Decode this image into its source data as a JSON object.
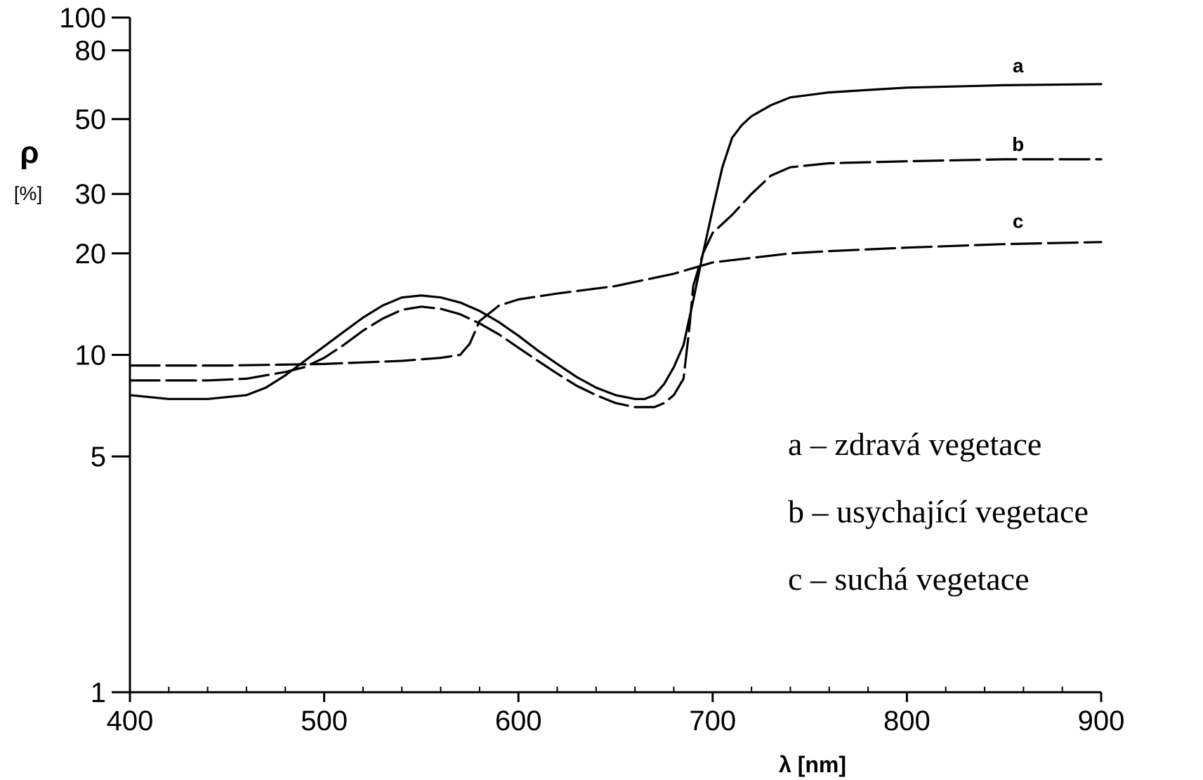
{
  "chart_data": {
    "type": "line",
    "title": "",
    "xlabel": "λ  [nm]",
    "ylabel_symbol": "ρ",
    "ylabel_unit": "[%]",
    "x_range": [
      400,
      900
    ],
    "y_range": [
      1,
      100
    ],
    "y_scale": "log",
    "grid": false,
    "x_ticks": [
      {
        "value": 400,
        "label": "400"
      },
      {
        "value": 500,
        "label": "500"
      },
      {
        "value": 600,
        "label": "600"
      },
      {
        "value": 700,
        "label": "700"
      },
      {
        "value": 800,
        "label": "800"
      },
      {
        "value": 900,
        "label": "900"
      }
    ],
    "y_ticks": [
      {
        "value": 1,
        "label": "1"
      },
      {
        "value": 5,
        "label": "5"
      },
      {
        "value": 10,
        "label": "10"
      },
      {
        "value": 20,
        "label": "20"
      },
      {
        "value": 30,
        "label": "30"
      },
      {
        "value": 50,
        "label": "50"
      },
      {
        "value": 80,
        "label": "80"
      },
      {
        "value": 100,
        "label": "100"
      }
    ],
    "series": [
      {
        "name": "a",
        "line_style": "solid",
        "label_at": [
          850,
          65
        ],
        "points": [
          [
            400,
            7.6
          ],
          [
            420,
            7.4
          ],
          [
            440,
            7.4
          ],
          [
            460,
            7.6
          ],
          [
            470,
            8.0
          ],
          [
            480,
            8.7
          ],
          [
            490,
            9.6
          ],
          [
            500,
            10.6
          ],
          [
            510,
            11.7
          ],
          [
            520,
            12.9
          ],
          [
            530,
            14.0
          ],
          [
            540,
            14.8
          ],
          [
            550,
            15.0
          ],
          [
            560,
            14.8
          ],
          [
            570,
            14.3
          ],
          [
            580,
            13.5
          ],
          [
            590,
            12.5
          ],
          [
            600,
            11.4
          ],
          [
            610,
            10.3
          ],
          [
            620,
            9.4
          ],
          [
            630,
            8.6
          ],
          [
            640,
            8.0
          ],
          [
            650,
            7.6
          ],
          [
            660,
            7.4
          ],
          [
            665,
            7.4
          ],
          [
            670,
            7.6
          ],
          [
            675,
            8.2
          ],
          [
            680,
            9.2
          ],
          [
            685,
            10.7
          ],
          [
            690,
            14.5
          ],
          [
            695,
            20
          ],
          [
            700,
            27
          ],
          [
            705,
            36
          ],
          [
            710,
            44
          ],
          [
            715,
            48
          ],
          [
            720,
            51
          ],
          [
            730,
            55
          ],
          [
            740,
            58
          ],
          [
            760,
            60
          ],
          [
            780,
            61
          ],
          [
            800,
            62
          ],
          [
            850,
            63
          ],
          [
            900,
            63.5
          ]
        ]
      },
      {
        "name": "b",
        "line_style": "dashed",
        "label_at": [
          850,
          38
        ],
        "points": [
          [
            400,
            8.4
          ],
          [
            420,
            8.4
          ],
          [
            440,
            8.4
          ],
          [
            460,
            8.5
          ],
          [
            480,
            8.9
          ],
          [
            490,
            9.2
          ],
          [
            500,
            9.8
          ],
          [
            510,
            10.7
          ],
          [
            520,
            11.8
          ],
          [
            530,
            12.8
          ],
          [
            540,
            13.6
          ],
          [
            550,
            13.9
          ],
          [
            560,
            13.7
          ],
          [
            570,
            13.2
          ],
          [
            580,
            12.4
          ],
          [
            590,
            11.5
          ],
          [
            600,
            10.5
          ],
          [
            610,
            9.6
          ],
          [
            620,
            8.8
          ],
          [
            630,
            8.1
          ],
          [
            640,
            7.6
          ],
          [
            650,
            7.2
          ],
          [
            660,
            7.0
          ],
          [
            670,
            7.0
          ],
          [
            675,
            7.2
          ],
          [
            680,
            7.6
          ],
          [
            685,
            8.5
          ],
          [
            688,
            12
          ],
          [
            690,
            16
          ],
          [
            695,
            20
          ],
          [
            700,
            23
          ],
          [
            710,
            26
          ],
          [
            720,
            30
          ],
          [
            730,
            34
          ],
          [
            740,
            36
          ],
          [
            760,
            37
          ],
          [
            800,
            37.5
          ],
          [
            850,
            38
          ],
          [
            900,
            38
          ]
        ]
      },
      {
        "name": "c",
        "line_style": "dashed",
        "label_at": [
          850,
          22.5
        ],
        "points": [
          [
            400,
            9.3
          ],
          [
            450,
            9.3
          ],
          [
            500,
            9.4
          ],
          [
            540,
            9.6
          ],
          [
            560,
            9.8
          ],
          [
            570,
            10.0
          ],
          [
            575,
            10.8
          ],
          [
            580,
            12.6
          ],
          [
            590,
            14.0
          ],
          [
            600,
            14.6
          ],
          [
            620,
            15.2
          ],
          [
            650,
            16.0
          ],
          [
            680,
            17.4
          ],
          [
            700,
            18.8
          ],
          [
            740,
            20.0
          ],
          [
            760,
            20.3
          ],
          [
            800,
            20.8
          ],
          [
            850,
            21.3
          ],
          [
            900,
            21.6
          ]
        ]
      }
    ],
    "legend": [
      "a – zdravá vegetace",
      "b – usychající vegetace",
      "c – suchá vegetace"
    ],
    "legend_placement": "right-middle"
  }
}
